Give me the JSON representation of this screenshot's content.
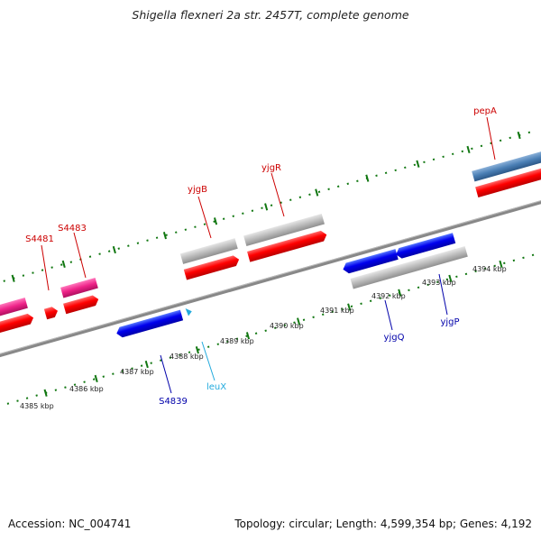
{
  "header": {
    "title": "Shigella flexneri 2a str. 2457T, complete genome"
  },
  "footer": {
    "accession": "Accession: NC_004741",
    "summary": "Topology: circular; Length: 4,599,354 bp; Genes: 4,192"
  },
  "colors": {
    "forward_gene": "#ff0000",
    "reverse_gene": "#0000ee",
    "forward_feature_pink": "#ee2288",
    "forward_feature_gray": "#bbbbbb",
    "forward_feature_steel": "#4a7fb5",
    "trna": "#22aadd",
    "tick": "#117711",
    "backbone": "#888888",
    "forward_label": "#cc0000",
    "reverse_label": "#0000aa",
    "trna_label": "#22aadd"
  },
  "scale_labels": [
    "4385 kbp",
    "4386 kbp",
    "4387 kbp",
    "4388 kbp",
    "4389 kbp",
    "4390 kbp",
    "4391 kbp",
    "4392 kbp",
    "4393 kbp",
    "4394 kbp"
  ],
  "genes": {
    "forward": [
      {
        "label": "S4481"
      },
      {
        "label": "S4483"
      },
      {
        "label": "yjgB"
      },
      {
        "label": "yjgR"
      },
      {
        "label": "pepA"
      }
    ],
    "reverse": [
      {
        "label": "S4839"
      },
      {
        "label": "yjgQ"
      },
      {
        "label": "yjgP"
      }
    ],
    "trna": [
      {
        "label": "leuX"
      }
    ]
  }
}
